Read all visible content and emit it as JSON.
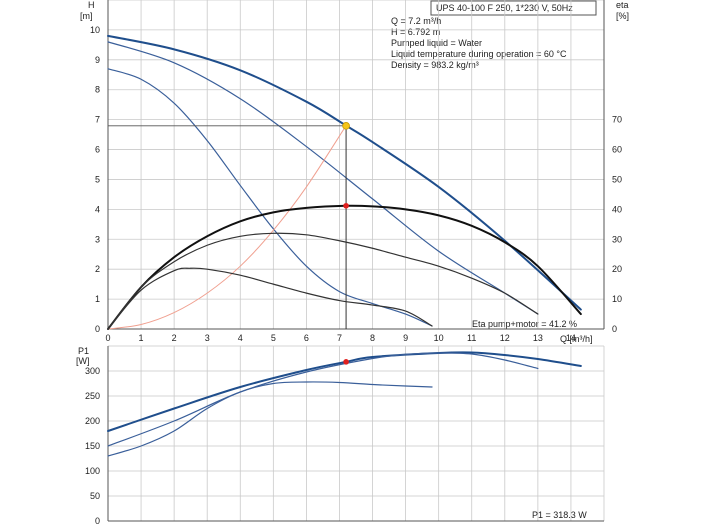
{
  "chart_data": [
    {
      "type": "line",
      "title": "UPS 40-100 F 250, 1*230 V, 50Hz",
      "ylabel_left": "H",
      "ylabel_left_unit": "[m]",
      "ylabel_right": "eta",
      "ylabel_right_unit": "[%]",
      "xlabel": "Q [m³/h]",
      "xlim": [
        0,
        15
      ],
      "ylim": [
        0,
        11
      ],
      "y2lim": [
        0,
        110
      ],
      "xticks": [
        "0",
        "1",
        "2",
        "3",
        "4",
        "5",
        "6",
        "7",
        "8",
        "9",
        "10",
        "11",
        "12",
        "13",
        "14"
      ],
      "yticks": [
        "0",
        "1",
        "2",
        "3",
        "4",
        "5",
        "6",
        "7",
        "8",
        "9",
        "10"
      ],
      "y2ticks": [
        "0",
        "10",
        "20",
        "30",
        "40",
        "50",
        "60",
        "70"
      ],
      "grid": true,
      "info_lines": [
        "Q = 7.2 m³/h",
        "H = 6.792 m",
        "Pumped liquid = Water",
        "Liquid temperature during operation = 60 °C",
        "Density = 983.2 kg/m³"
      ],
      "eta_label": "Eta pump+motor = 41.2 %",
      "duty_point": {
        "x": 7.2,
        "y": 6.792
      },
      "eta_point": {
        "x": 7.2,
        "y": 41.2
      },
      "series": [
        {
          "axis": "H",
          "color": "#1f4e8c",
          "width": 2.0,
          "x": [
            0,
            2,
            4,
            6,
            7.2,
            8,
            10,
            12,
            14.3
          ],
          "y": [
            9.8,
            9.35,
            8.65,
            7.6,
            6.8,
            6.25,
            4.75,
            2.95,
            0.65
          ]
        },
        {
          "axis": "H",
          "color": "#3a5f9a",
          "width": 1.2,
          "x": [
            0,
            2,
            4,
            6,
            8,
            10,
            12,
            13
          ],
          "y": [
            9.6,
            8.9,
            7.7,
            6.1,
            4.35,
            2.6,
            1.2,
            0.5
          ]
        },
        {
          "axis": "H",
          "color": "#3a5f9a",
          "width": 1.2,
          "x": [
            0,
            1,
            2,
            3,
            4,
            5,
            6,
            7,
            8,
            9,
            9.8
          ],
          "y": [
            8.7,
            8.35,
            7.55,
            6.3,
            4.8,
            3.35,
            2.1,
            1.25,
            0.85,
            0.5,
            0.1
          ]
        },
        {
          "axis": "H",
          "color": "#f0a090",
          "width": 1.0,
          "x": [
            0,
            1,
            2,
            3,
            4,
            5,
            6,
            7.2
          ],
          "y": [
            0,
            0.15,
            0.55,
            1.2,
            2.1,
            3.3,
            4.75,
            6.8
          ]
        },
        {
          "axis": "eta",
          "color": "#111111",
          "width": 2.0,
          "x": [
            0,
            1,
            2,
            3,
            4,
            5,
            6,
            7.2,
            8,
            9,
            10,
            11,
            12,
            13,
            14.3
          ],
          "y": [
            0,
            14,
            24,
            31,
            36,
            39,
            40.5,
            41.2,
            41,
            40,
            38,
            34.5,
            29,
            21,
            5
          ]
        },
        {
          "axis": "eta",
          "color": "#333333",
          "width": 1.2,
          "x": [
            0,
            1,
            2,
            3,
            4,
            5,
            6,
            7,
            8,
            9,
            10,
            11,
            12,
            13
          ],
          "y": [
            0,
            14,
            22.5,
            28,
            31,
            32,
            31.5,
            29.5,
            27,
            24,
            21,
            17,
            12,
            5
          ]
        },
        {
          "axis": "eta",
          "color": "#333333",
          "width": 1.2,
          "x": [
            0,
            1,
            2,
            2.5,
            3,
            4,
            5,
            6,
            7,
            8,
            9,
            9.8
          ],
          "y": [
            0,
            13,
            19.5,
            20.3,
            20,
            18,
            15,
            12,
            9.5,
            8,
            6,
            1
          ]
        }
      ]
    },
    {
      "type": "line",
      "ylabel": "P1",
      "ylabel_unit": "[W]",
      "xlim": [
        0,
        15
      ],
      "ylim": [
        0,
        350
      ],
      "yticks": [
        "0",
        "50",
        "100",
        "150",
        "200",
        "250",
        "300"
      ],
      "grid": true,
      "p1_label": "P1 = 318.3 W",
      "duty_point": {
        "x": 7.2,
        "y": 318.3
      },
      "series": [
        {
          "color": "#1f4e8c",
          "width": 2.0,
          "x": [
            0,
            2,
            4,
            6,
            7.2,
            8,
            10,
            11,
            12,
            13,
            14.3
          ],
          "y": [
            180,
            225,
            268,
            302,
            318.3,
            328,
            336,
            337,
            332,
            324,
            310
          ]
        },
        {
          "color": "#3a5f9a",
          "width": 1.2,
          "x": [
            0,
            2,
            4,
            6,
            8,
            9,
            10,
            11,
            12,
            13
          ],
          "y": [
            150,
            200,
            258,
            298,
            325,
            333,
            336,
            334,
            322,
            305
          ]
        },
        {
          "color": "#3a5f9a",
          "width": 1.2,
          "x": [
            0,
            1,
            2,
            3,
            4,
            5,
            6,
            7,
            8,
            9,
            9.8
          ],
          "y": [
            130,
            150,
            180,
            225,
            258,
            275,
            278,
            277,
            273,
            270,
            268
          ]
        }
      ]
    }
  ]
}
